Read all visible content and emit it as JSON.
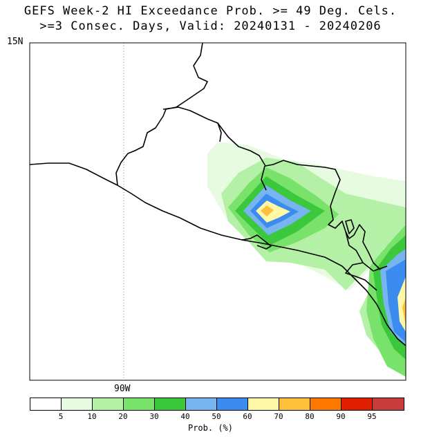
{
  "title_line1": "GEFS Week-2 HI Exceedance Prob. >= 49 Deg. Cels.",
  "title_line2": ">=3 Consec. Days, Valid: 20240131 - 20240206",
  "lat_label": "15N",
  "lon_label": "90W",
  "colorbar": {
    "title": "Prob. (%)",
    "ticks": [
      "5",
      "10",
      "20",
      "30",
      "40",
      "50",
      "60",
      "70",
      "80",
      "90",
      "95"
    ],
    "colors": [
      "#ffffff",
      "#e6fbe0",
      "#b4f0a6",
      "#78e26a",
      "#3cc83c",
      "#78b4f0",
      "#3c8cf0",
      "#fff8a6",
      "#ffc03c",
      "#ff7800",
      "#e01e00",
      "#c83c3c"
    ]
  }
}
